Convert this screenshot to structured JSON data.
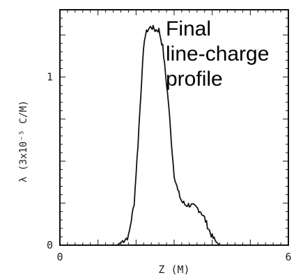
{
  "chart_data": {
    "type": "line",
    "title": "",
    "xlabel": "Z (M)",
    "ylabel": "λ (3x10⁻⁵ C/M)",
    "xlim": [
      0,
      6
    ],
    "ylim": [
      0,
      1.4
    ],
    "x_ticks": [
      "0",
      "6"
    ],
    "y_ticks": [
      "0",
      "1"
    ],
    "grid": false,
    "annotation": [
      "Final",
      "line-charge",
      "profile"
    ],
    "series": [
      {
        "x": [
          0.0,
          1.5,
          1.8,
          1.95,
          2.05,
          2.15,
          2.22,
          2.3,
          2.4,
          2.5,
          2.6,
          2.7,
          2.85,
          2.95,
          3.0,
          3.1,
          3.2,
          3.3,
          3.4,
          3.5,
          3.6,
          3.7,
          3.8,
          3.9,
          4.0,
          4.1,
          4.2,
          4.4,
          4.6,
          4.8,
          6.0
        ],
        "y": [
          0.0,
          0.0,
          0.05,
          0.25,
          0.6,
          1.0,
          1.23,
          1.28,
          1.3,
          1.28,
          1.28,
          1.18,
          0.85,
          0.55,
          0.42,
          0.32,
          0.26,
          0.24,
          0.24,
          0.23,
          0.22,
          0.2,
          0.16,
          0.1,
          0.05,
          0.02,
          0.0,
          0.0,
          0.0,
          0.0,
          0.0
        ]
      }
    ]
  }
}
